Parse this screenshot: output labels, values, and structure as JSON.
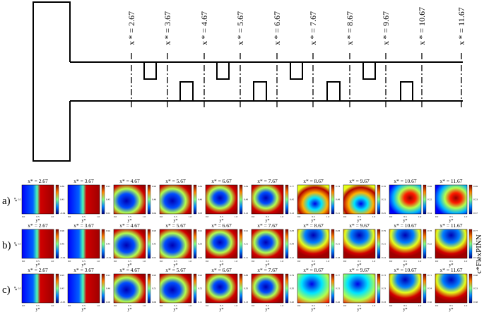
{
  "figure": {
    "stations": [
      "x * = 2.67",
      "x * = 3.67",
      "x * = 4.67",
      "x * = 5.67",
      "x * = 6.67",
      "x * = 7.67",
      "x * = 8.67",
      "x * = 9.67",
      "x * = 10.67",
      "x * = 11.67"
    ],
    "rows": [
      {
        "label": "a)",
        "titles": [
          "x* = 2.67",
          "x* = 3.67",
          "x* = 4.67",
          "x* = 5.67",
          "x* = 6.67",
          "x* = 7.67",
          "x* = 8.67",
          "x* = 9.67",
          "x* = 10.67",
          "x* = 11.67"
        ],
        "cb_top": [
          "0.89",
          "0.91",
          "0.90",
          "0.84",
          "0.84",
          "0.77",
          "0.74",
          "0.76",
          "0.69",
          "0.69"
        ],
        "cb_mid": [
          "0.43",
          "0.45",
          "0.46",
          "0.46",
          "0.48",
          "0.45",
          "0.48",
          "0.51",
          "0.52",
          "0.53"
        ],
        "cb_bot": [
          "-0.04",
          "0.01",
          "0.04",
          "0.03",
          "0.12",
          "0.12",
          "0.21",
          "0.25",
          "0.34",
          "0.37"
        ],
        "patterns": [
          "split",
          "split",
          "cool_blob",
          "cool_blob",
          "blue_center",
          "blue_center",
          "swirl",
          "swirl",
          "red_center",
          "red_center"
        ]
      },
      {
        "label": "b)",
        "titles": [
          "x* = 2.67",
          "x* = 3.67",
          "x* = 4.67",
          "x* = 5.67",
          "x* = 6.67",
          "x* = 7.67",
          "x* = 8.67",
          "x* = 9.67",
          "x* = 10.67",
          "x* = 11.67"
        ],
        "cb_top": [
          "0.96",
          "0.94",
          "0.93",
          "0.91",
          "0.91",
          "0.83",
          "0.83",
          "0.79",
          "0.78",
          "0.77"
        ],
        "cb_mid": [
          "0.46",
          "0.45",
          "0.45",
          "0.50",
          "0.51",
          "0.49",
          "0.51",
          "0.51",
          "0.52",
          "0.54"
        ],
        "cb_bot": [
          "-0.04",
          "-0.01",
          "0.01",
          "0.06",
          "0.11",
          "0.15",
          "0.18",
          "0.24",
          "0.26",
          "0.31"
        ],
        "patterns": [
          "split",
          "split",
          "cool_blob",
          "cool_blob",
          "blue_center",
          "blue_center",
          "blue_top",
          "blue_top",
          "blue_top",
          "blue_top"
        ]
      },
      {
        "label": "c)",
        "titles": [
          "x* = 2.67",
          "x* = 3.67",
          "x* = 4.67",
          "x* = 5.67",
          "x* = 6.67",
          "x* = 7.67",
          "x* = 8.67",
          "x* = 9.67",
          "x* = 10.67",
          "x* = 11.67"
        ],
        "cb_top": [
          "0.95",
          "0.91",
          "0.93",
          "0.92",
          "0.88",
          "0.79",
          "0.77",
          "0.73",
          "0.71",
          "0.68"
        ],
        "cb_mid": [
          "0.45",
          "0.46",
          "0.51",
          "0.52",
          "0.50",
          "0.50",
          "0.51",
          "0.53",
          "0.54",
          "0.53"
        ],
        "cb_bot": [
          "-0.05",
          "0.00",
          "0.09",
          "0.11",
          "0.13",
          "0.20",
          "0.26",
          "0.33",
          "0.36",
          "0.38"
        ],
        "patterns": [
          "split",
          "split",
          "cool_blob",
          "cool_blob",
          "blue_center",
          "blue_center",
          "cyan_wide",
          "cyan_wide",
          "blue_top",
          "blue_top"
        ]
      }
    ],
    "x_tick_labels": [
      "0.0",
      "0.5",
      "1.0"
    ],
    "y_axis_label": "z*",
    "y_tick_label": "0.5",
    "x_axis_label": "y*",
    "side_label": "c*FlexPINN",
    "colors": {
      "line": "#000000",
      "hot": "#e01010",
      "cold": "#0a2aa0"
    }
  }
}
